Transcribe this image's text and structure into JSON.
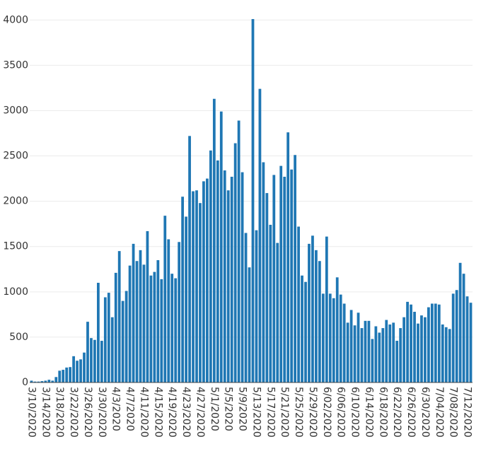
{
  "chart_data": {
    "type": "bar",
    "color": "#1f77b4",
    "grid": true,
    "ylim": [
      0,
      4080
    ],
    "yticks": [
      0,
      500,
      1000,
      1500,
      2000,
      2500,
      3000,
      3500,
      4000
    ],
    "categories": [
      "3/10/2020",
      null,
      null,
      null,
      "3/14/2020",
      null,
      null,
      null,
      "3/18/2020",
      null,
      null,
      null,
      "3/22/2020",
      null,
      null,
      null,
      "3/26/2020",
      null,
      null,
      null,
      "3/30/2020",
      null,
      null,
      null,
      "4/3/2020",
      null,
      null,
      null,
      "4/7/2020",
      null,
      null,
      null,
      "4/11/2020",
      null,
      null,
      null,
      "4/15/2020",
      null,
      null,
      null,
      "4/19/2020",
      null,
      null,
      null,
      "4/23/2020",
      null,
      null,
      null,
      "4/27/2020",
      null,
      null,
      null,
      "5/1/2020",
      null,
      null,
      null,
      "5/5/2020",
      null,
      null,
      null,
      "5/9/2020",
      null,
      null,
      null,
      "5/13/2020",
      null,
      null,
      null,
      "5/17/2020",
      null,
      null,
      null,
      "5/21/2020",
      null,
      null,
      null,
      "5/25/2020",
      null,
      null,
      null,
      "5/29/2020",
      null,
      null,
      null,
      "6/02/2020",
      null,
      null,
      null,
      "6/06/2020",
      null,
      null,
      null,
      "6/10/2020",
      null,
      null,
      null,
      "6/14/2020",
      null,
      null,
      null,
      "6/18/2020",
      null,
      null,
      null,
      "6/22/2020",
      null,
      null,
      null,
      "6/26/2020",
      null,
      null,
      null,
      "6/30/2020",
      null,
      null,
      null,
      "7/04/2020",
      null,
      null,
      null,
      "7/08/2020",
      null,
      null,
      null,
      "7/12/2020",
      null
    ],
    "values": [
      20,
      10,
      10,
      15,
      20,
      30,
      20,
      60,
      130,
      140,
      165,
      170,
      290,
      240,
      255,
      330,
      670,
      490,
      470,
      1100,
      460,
      940,
      990,
      720,
      1210,
      1450,
      900,
      1010,
      1290,
      1530,
      1340,
      1460,
      1300,
      1670,
      1180,
      1220,
      1350,
      1140,
      1840,
      1580,
      1200,
      1150,
      1550,
      2050,
      1830,
      2720,
      2110,
      2120,
      1980,
      2220,
      2250,
      2560,
      3130,
      2450,
      2990,
      2340,
      2120,
      2270,
      2640,
      2890,
      2320,
      1650,
      1270,
      4010,
      1680,
      3240,
      2430,
      2090,
      1740,
      2290,
      1540,
      2390,
      2270,
      2760,
      2350,
      2510,
      1720,
      1180,
      1110,
      1530,
      1620,
      1460,
      1340,
      980,
      1610,
      980,
      930,
      1160,
      970,
      870,
      660,
      800,
      630,
      770,
      600,
      680,
      680,
      480,
      620,
      550,
      600,
      690,
      640,
      660,
      460,
      600,
      720,
      890,
      860,
      780,
      650,
      740,
      720,
      830,
      870,
      870,
      860,
      640,
      610,
      590,
      980,
      1020,
      1320,
      1200,
      950,
      880
    ]
  }
}
